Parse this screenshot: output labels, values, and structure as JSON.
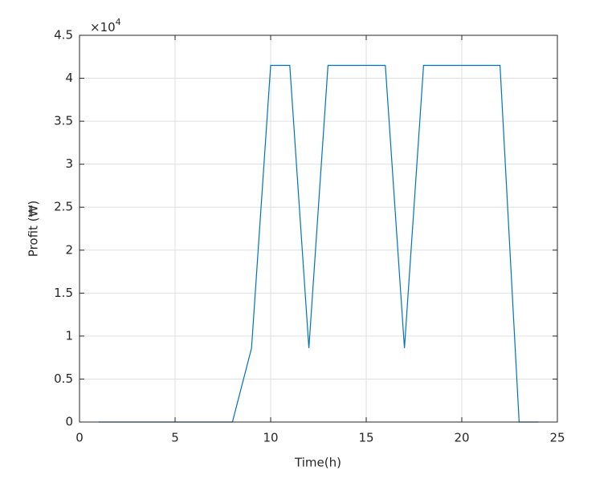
{
  "chart_data": {
    "type": "line",
    "x_label": "Time(h)",
    "y_label": "Profit (₩)",
    "y_multiplier": {
      "base": "×10",
      "exponent": "4"
    },
    "x": [
      1,
      2,
      3,
      4,
      5,
      6,
      7,
      8,
      9,
      10,
      11,
      12,
      13,
      14,
      15,
      16,
      17,
      18,
      19,
      20,
      21,
      22,
      23,
      24
    ],
    "series": [
      {
        "color": "#0072bd",
        "values": [
          0,
          0,
          0,
          0,
          0,
          0,
          0,
          0,
          0.86,
          4.15,
          4.15,
          0.86,
          4.15,
          4.15,
          4.15,
          4.15,
          0.86,
          4.15,
          4.15,
          4.15,
          4.15,
          4.15,
          0,
          0
        ]
      }
    ],
    "xlim": [
      0,
      25
    ],
    "xticks": [
      0,
      5,
      10,
      15,
      20,
      25
    ],
    "ylim": [
      0,
      4.5
    ],
    "yticks": [
      0,
      0.5,
      1,
      1.5,
      2,
      2.5,
      3,
      3.5,
      4,
      4.5
    ],
    "grid": true
  }
}
